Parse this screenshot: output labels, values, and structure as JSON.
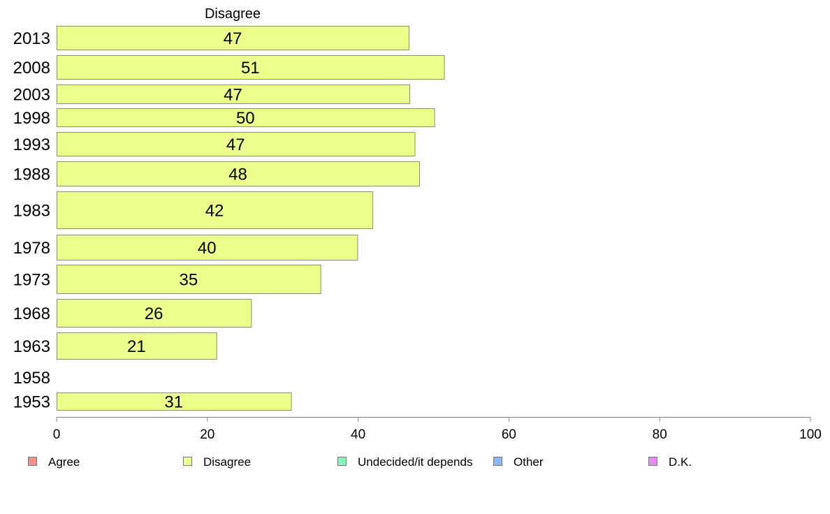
{
  "chart_data": {
    "type": "bar",
    "orientation": "horizontal",
    "series_title": "Disagree",
    "categories": [
      "2013",
      "2008",
      "2003",
      "1998",
      "1993",
      "1988",
      "1983",
      "1978",
      "1973",
      "1968",
      "1963",
      "1958",
      "1953"
    ],
    "series": [
      {
        "name": "Disagree",
        "color": "#ebff8a",
        "values": [
          46.7,
          51.4,
          46.8,
          50.1,
          47.5,
          48.1,
          41.9,
          39.9,
          35.0,
          25.8,
          21.2,
          null,
          31.1
        ],
        "labels": [
          "47",
          "51",
          "47",
          "50",
          "47",
          "48",
          "42",
          "40",
          "35",
          "26",
          "21",
          "",
          "31"
        ]
      }
    ],
    "xlim": [
      0,
      100
    ],
    "xticks": [
      "0",
      "20",
      "40",
      "60",
      "80",
      "100"
    ],
    "grid": false,
    "legend": {
      "position": "bottom",
      "items": [
        {
          "label": "Agree",
          "color": "#f4908a"
        },
        {
          "label": "Disagree",
          "color": "#ebff8a"
        },
        {
          "label": "Undecided/it depends",
          "color": "#8af4b8"
        },
        {
          "label": "Other",
          "color": "#8ab8f4"
        },
        {
          "label": "D.K.",
          "color": "#e68af4"
        }
      ]
    }
  }
}
